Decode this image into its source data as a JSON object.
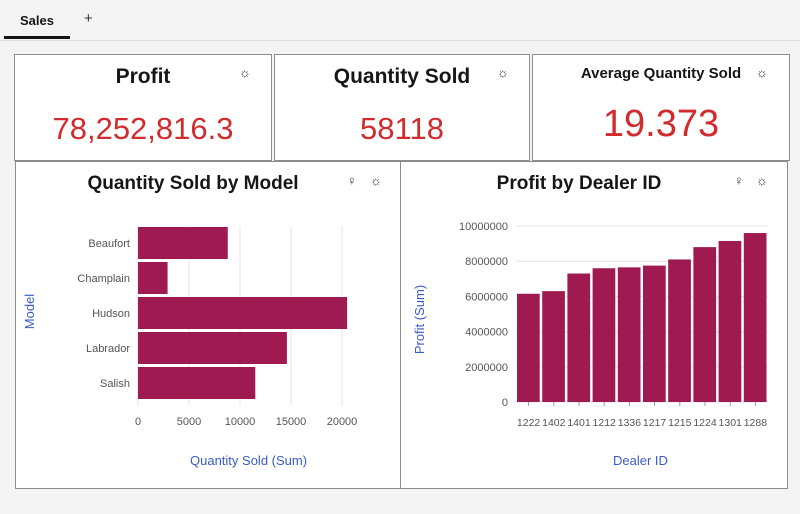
{
  "tabs": {
    "active": "Sales",
    "add": "+"
  },
  "kpis": [
    {
      "title": "Profit",
      "value": "78,252,816.3"
    },
    {
      "title": "Quantity Sold",
      "value": "58118"
    },
    {
      "title": "Average Quantity Sold",
      "value": "19.373"
    }
  ],
  "icons": {
    "gear": "☼",
    "bulb": "♀"
  },
  "colors": {
    "bar": "#9e1a51",
    "value": "#d12b2e",
    "axis_label": "#3a5bc7"
  },
  "chart_data": [
    {
      "type": "bar",
      "orientation": "horizontal",
      "title": "Quantity Sold by Model",
      "xlabel": "Quantity Sold (Sum)",
      "ylabel": "Model",
      "categories": [
        "Beaufort",
        "Champlain",
        "Hudson",
        "Labrador",
        "Salish"
      ],
      "values": [
        8800,
        2900,
        20500,
        14600,
        11500
      ],
      "xlim": [
        0,
        22000
      ],
      "xticks": [
        0,
        5000,
        10000,
        15000,
        20000
      ],
      "grid": true
    },
    {
      "type": "bar",
      "title": "Profit by Dealer ID",
      "xlabel": "Dealer ID",
      "ylabel": "Profit (Sum)",
      "categories": [
        "1222",
        "1402",
        "1401",
        "1212",
        "1336",
        "1217",
        "1215",
        "1224",
        "1301",
        "1288"
      ],
      "values": [
        6150000,
        6300000,
        7300000,
        7600000,
        7650000,
        7750000,
        8100000,
        8800000,
        9150000,
        9600000
      ],
      "ylim": [
        0,
        10000000
      ],
      "yticks": [
        0,
        2000000,
        4000000,
        6000000,
        8000000,
        10000000
      ],
      "grid": true
    }
  ]
}
